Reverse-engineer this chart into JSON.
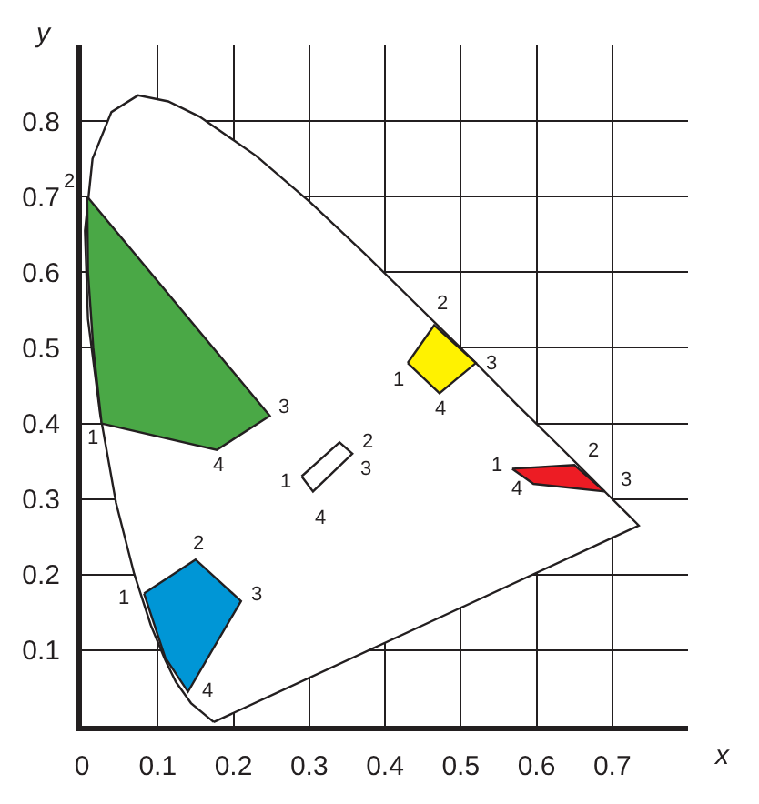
{
  "chart_data": {
    "type": "area",
    "xlabel": "x",
    "ylabel": "y",
    "xlim": [
      0,
      0.8
    ],
    "ylim": [
      0,
      0.9
    ],
    "xticks": [
      0,
      0.1,
      0.2,
      0.3,
      0.4,
      0.5,
      0.6,
      0.7
    ],
    "yticks": [
      0.1,
      0.2,
      0.3,
      0.4,
      0.5,
      0.6,
      0.7,
      0.8
    ],
    "grid": true,
    "marker": "none",
    "series": [
      {
        "color": "#ffffff",
        "x": [
          0.174,
          0.144,
          0.124,
          0.11,
          0.091,
          0.069,
          0.045,
          0.024,
          0.008,
          0.004,
          0.014,
          0.039,
          0.074,
          0.114,
          0.155,
          0.23,
          0.302,
          0.373,
          0.444,
          0.513,
          0.575,
          0.627,
          0.692,
          0.719,
          0.735,
          0.174
        ],
        "values": [
          0.005,
          0.03,
          0.058,
          0.087,
          0.133,
          0.201,
          0.295,
          0.413,
          0.538,
          0.655,
          0.75,
          0.812,
          0.834,
          0.826,
          0.806,
          0.754,
          0.692,
          0.625,
          0.555,
          0.487,
          0.424,
          0.373,
          0.308,
          0.281,
          0.265,
          0.005
        ]
      },
      {
        "color": "#4aa846",
        "x": [
          0.026,
          0.015,
          0.008,
          0.007,
          0.248,
          0.178,
          0.026
        ],
        "values": [
          0.4,
          0.5,
          0.6,
          0.7,
          0.41,
          0.365,
          0.4
        ]
      },
      {
        "color": "#0096d6",
        "x": [
          0.082,
          0.15,
          0.21,
          0.14,
          0.11,
          0.082
        ],
        "values": [
          0.175,
          0.22,
          0.165,
          0.045,
          0.09,
          0.175
        ]
      },
      {
        "color": "#ffffff",
        "x": [
          0.29,
          0.34,
          0.357,
          0.305,
          0.29
        ],
        "values": [
          0.33,
          0.375,
          0.36,
          0.31,
          0.33
        ]
      },
      {
        "color": "#fff200",
        "x": [
          0.43,
          0.465,
          0.52,
          0.472,
          0.43
        ],
        "values": [
          0.48,
          0.53,
          0.48,
          0.44,
          0.48
        ]
      },
      {
        "color": "#ed1c24",
        "x": [
          0.568,
          0.65,
          0.69,
          0.596,
          0.568
        ],
        "values": [
          0.34,
          0.345,
          0.31,
          0.32,
          0.34
        ]
      }
    ],
    "annotations": [
      {
        "text": "1",
        "x": 0.026,
        "y": 0.4
      },
      {
        "text": "2",
        "x": 0.007,
        "y": 0.7
      },
      {
        "text": "3",
        "x": 0.248,
        "y": 0.41
      },
      {
        "text": "4",
        "x": 0.178,
        "y": 0.365
      },
      {
        "text": "1",
        "x": 0.082,
        "y": 0.175
      },
      {
        "text": "2",
        "x": 0.15,
        "y": 0.22
      },
      {
        "text": "3",
        "x": 0.21,
        "y": 0.165
      },
      {
        "text": "4",
        "x": 0.14,
        "y": 0.045
      },
      {
        "text": "1",
        "x": 0.29,
        "y": 0.33
      },
      {
        "text": "2",
        "x": 0.34,
        "y": 0.375
      },
      {
        "text": "3",
        "x": 0.357,
        "y": 0.36
      },
      {
        "text": "4",
        "x": 0.305,
        "y": 0.31
      },
      {
        "text": "1",
        "x": 0.43,
        "y": 0.48
      },
      {
        "text": "2",
        "x": 0.465,
        "y": 0.53
      },
      {
        "text": "3",
        "x": 0.52,
        "y": 0.48
      },
      {
        "text": "4",
        "x": 0.472,
        "y": 0.44
      },
      {
        "text": "1",
        "x": 0.568,
        "y": 0.34
      },
      {
        "text": "2",
        "x": 0.65,
        "y": 0.345
      },
      {
        "text": "3",
        "x": 0.69,
        "y": 0.31
      },
      {
        "text": "4",
        "x": 0.596,
        "y": 0.32
      }
    ]
  }
}
